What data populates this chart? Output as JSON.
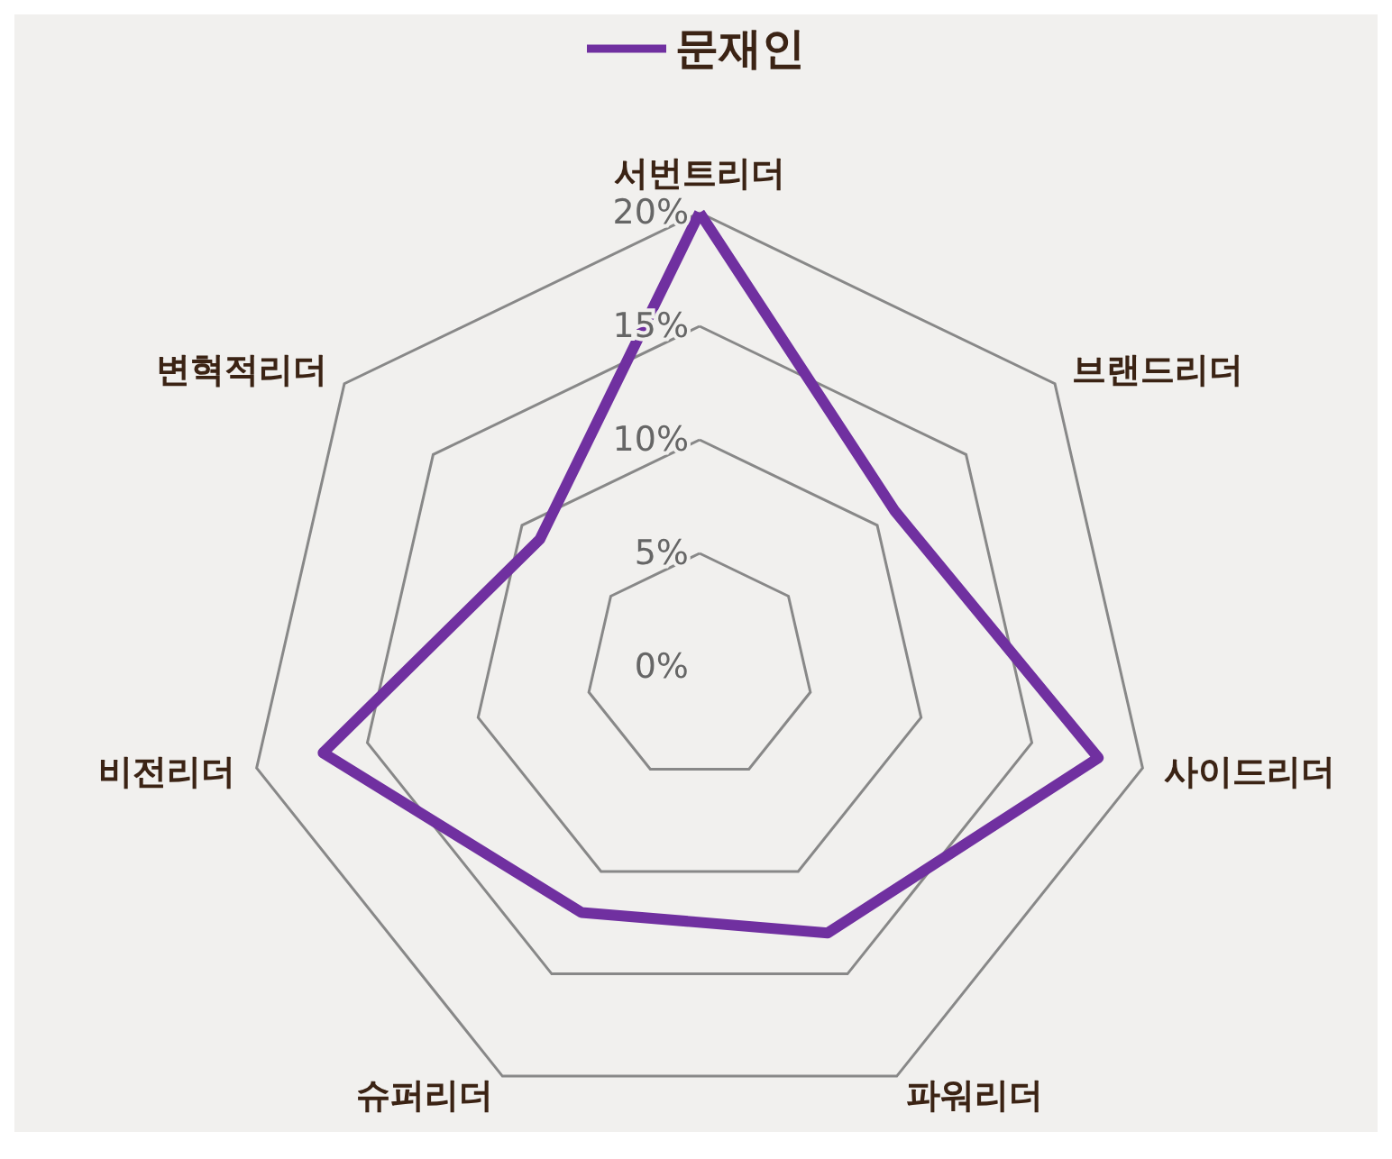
{
  "chart_data": {
    "type": "radar",
    "categories": [
      "서번트리더",
      "브랜드리더",
      "사이드리더",
      "파워리더",
      "슈퍼리더",
      "비전리더",
      "변혁적리더"
    ],
    "series": [
      {
        "name": "문재인",
        "color": "#7030a0",
        "values": [
          20,
          11,
          18,
          13,
          12,
          17,
          9
        ]
      }
    ],
    "ylim": [
      0,
      20
    ],
    "yticks": [
      {
        "value": 0,
        "label": "0%"
      },
      {
        "value": 5,
        "label": "5%"
      },
      {
        "value": 10,
        "label": "10%"
      },
      {
        "value": 15,
        "label": "15%"
      },
      {
        "value": 20,
        "label": "20%"
      }
    ],
    "grid": true,
    "legend": "top",
    "marker": "none",
    "line_style": "solid"
  }
}
